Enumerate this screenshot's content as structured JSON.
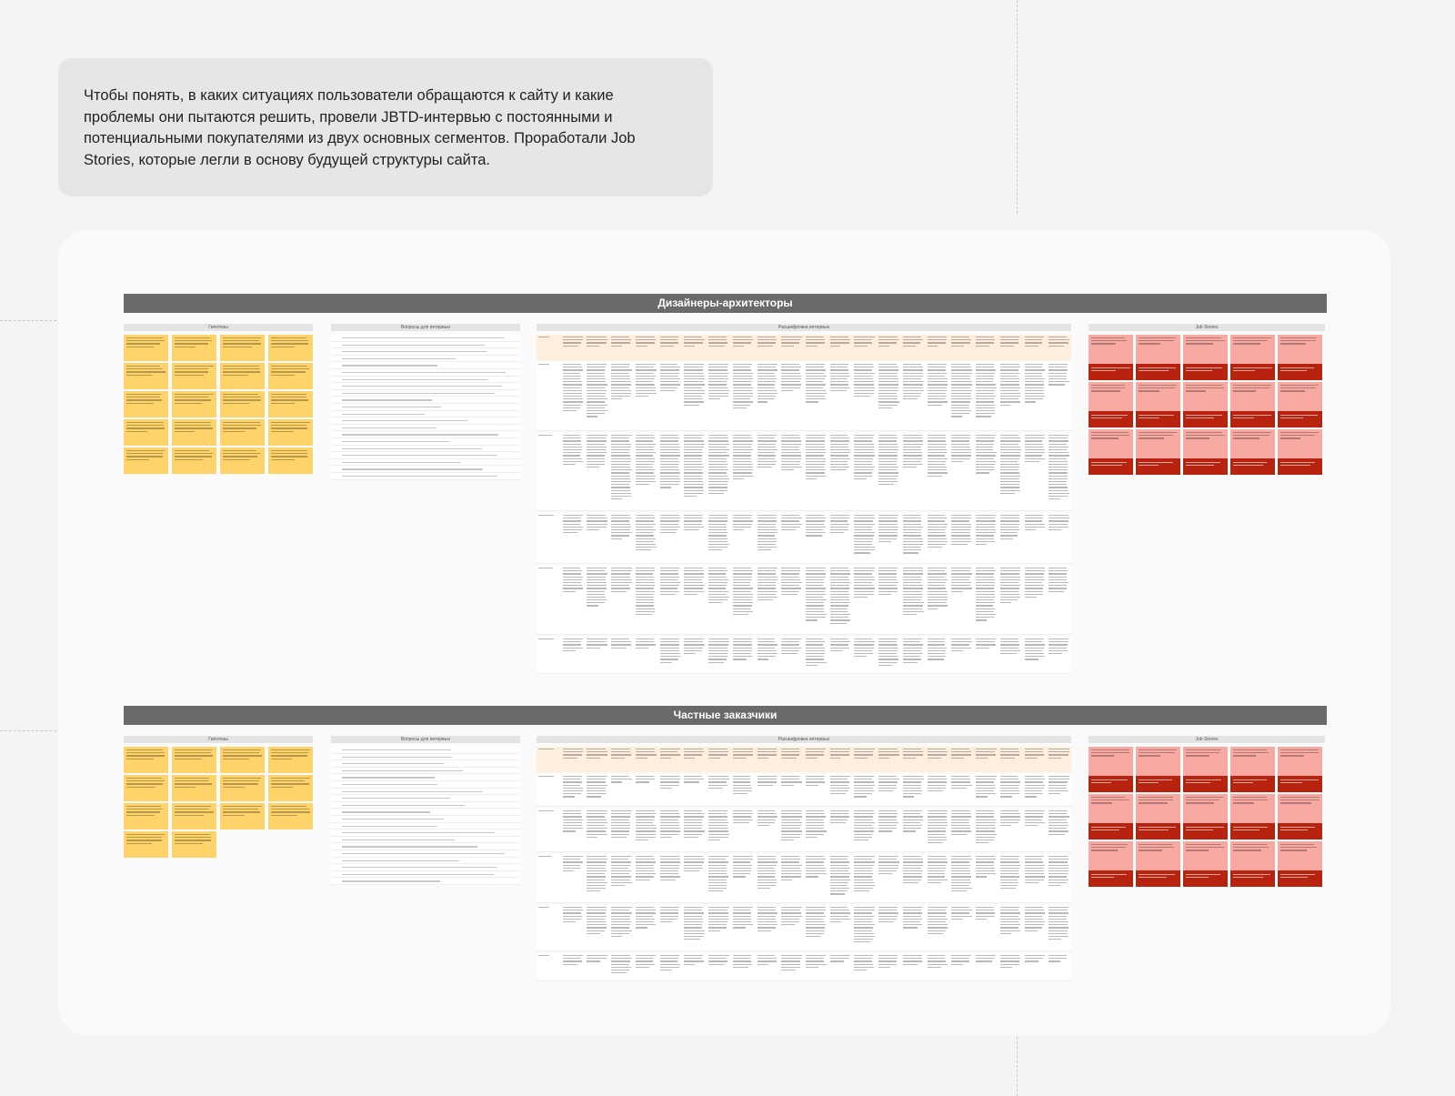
{
  "intro": {
    "text": "Чтобы понять, в каких ситуациях пользователи обращаются к сайту и какие проблемы они пытаются решить, провели JBTD-интервью с постоянными и потенциальными покупателями из двух основных сегментов. Проработали Job Stories, которые легли в основу будущей структуры сайта."
  },
  "sections": [
    {
      "title": "Дизайнеры-архитекторы",
      "hypotheses": "Гипотезы",
      "questions": "Вопросы для интервью",
      "transcripts": "Расшифровка интервью",
      "stories": "Job Stories"
    },
    {
      "title": "Частные заказчики",
      "hypotheses": "Гипотезы",
      "questions": "Вопросы для интервью",
      "transcripts": "Расшифровка интервью",
      "stories": "Job Stories"
    }
  ],
  "colors": {
    "note": "#fdd36a",
    "story_top": "#f8aaa2",
    "story_bottom": "#b8230f",
    "section_bar": "#6a6a6a",
    "table_header": "#fdeedd"
  }
}
